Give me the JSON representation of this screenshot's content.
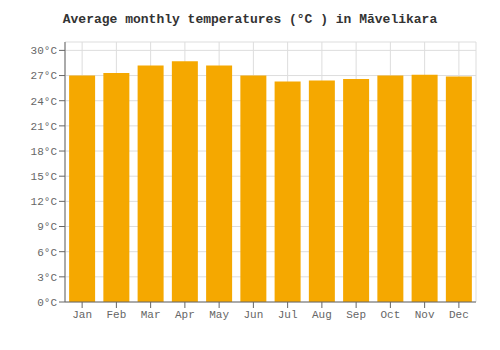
{
  "chart_data": {
    "type": "bar",
    "title": "Average monthly temperatures (°C ) in Māvelikara",
    "categories": [
      "Jan",
      "Feb",
      "Mar",
      "Apr",
      "May",
      "Jun",
      "Jul",
      "Aug",
      "Sep",
      "Oct",
      "Nov",
      "Dec"
    ],
    "values": [
      27.0,
      27.3,
      28.2,
      28.7,
      28.2,
      27.0,
      26.3,
      26.4,
      26.6,
      27.0,
      27.1,
      26.9
    ],
    "color": "#F5A800",
    "ylim": [
      0,
      31
    ],
    "yticks": [
      {
        "value": 0,
        "label": "0°C"
      },
      {
        "value": 3,
        "label": "3°C"
      },
      {
        "value": 6,
        "label": "6°C"
      },
      {
        "value": 9,
        "label": "9°C"
      },
      {
        "value": 12,
        "label": "12°C"
      },
      {
        "value": 15,
        "label": "15°C"
      },
      {
        "value": 18,
        "label": "18°C"
      },
      {
        "value": 21,
        "label": "21°C"
      },
      {
        "value": 24,
        "label": "24°C"
      },
      {
        "value": 27,
        "label": "27°C"
      },
      {
        "value": 30,
        "label": "30°C"
      }
    ],
    "grid": true
  }
}
